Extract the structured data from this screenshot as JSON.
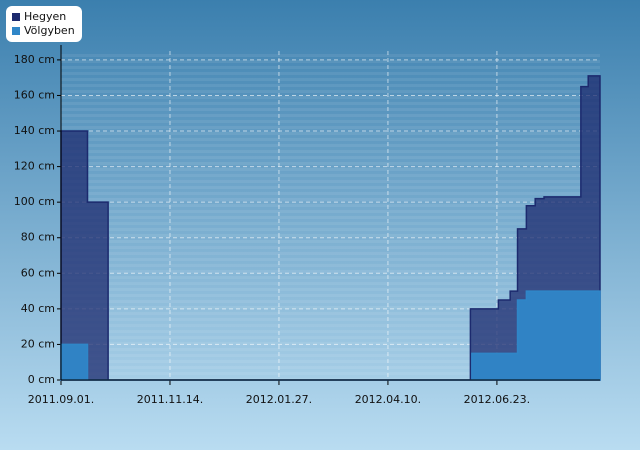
{
  "chart_data": {
    "type": "area",
    "step": true,
    "grid": true,
    "legend": "top-left",
    "x": [
      "2011-09-01",
      "2011-09-19",
      "2011-10-03",
      "2012-06-04",
      "2012-06-05",
      "2012-06-06",
      "2012-06-24",
      "2012-07-02",
      "2012-07-07",
      "2012-07-13",
      "2012-07-19",
      "2012-07-25",
      "2012-08-19",
      "2012-08-24",
      "2012-09-01"
    ],
    "series": [
      {
        "name": "Hegyen",
        "color": "#1c2a6e",
        "values": [
          140,
          100,
          0,
          0,
          40,
          40,
          45,
          50,
          85,
          98,
          102,
          103,
          165,
          171,
          171
        ]
      },
      {
        "name": "Völgyben",
        "color": "#2f86c8",
        "values": [
          20,
          0,
          0,
          0,
          0,
          15,
          15,
          15,
          45,
          50,
          50,
          50,
          50,
          50,
          50
        ]
      }
    ],
    "xlim": [
      "2011-09-01",
      "2012-09-01"
    ],
    "xticks": [
      {
        "value": "2011-09-01",
        "label": "2011.09.01."
      },
      {
        "value": "2011-11-14",
        "label": "2011.11.14."
      },
      {
        "value": "2012-01-27",
        "label": "2012.01.27."
      },
      {
        "value": "2012-04-10",
        "label": "2012.04.10."
      },
      {
        "value": "2012-06-23",
        "label": "2012.06.23."
      }
    ],
    "ylim": [
      0,
      185
    ],
    "yticks": [
      {
        "value": 0,
        "label": "0 cm"
      },
      {
        "value": 20,
        "label": "20 cm"
      },
      {
        "value": 40,
        "label": "40 cm"
      },
      {
        "value": 60,
        "label": "60 cm"
      },
      {
        "value": 80,
        "label": "80 cm"
      },
      {
        "value": 100,
        "label": "100 cm"
      },
      {
        "value": 120,
        "label": "120 cm"
      },
      {
        "value": 140,
        "label": "140 cm"
      },
      {
        "value": 160,
        "label": "160 cm"
      },
      {
        "value": 180,
        "label": "180 cm"
      }
    ]
  }
}
